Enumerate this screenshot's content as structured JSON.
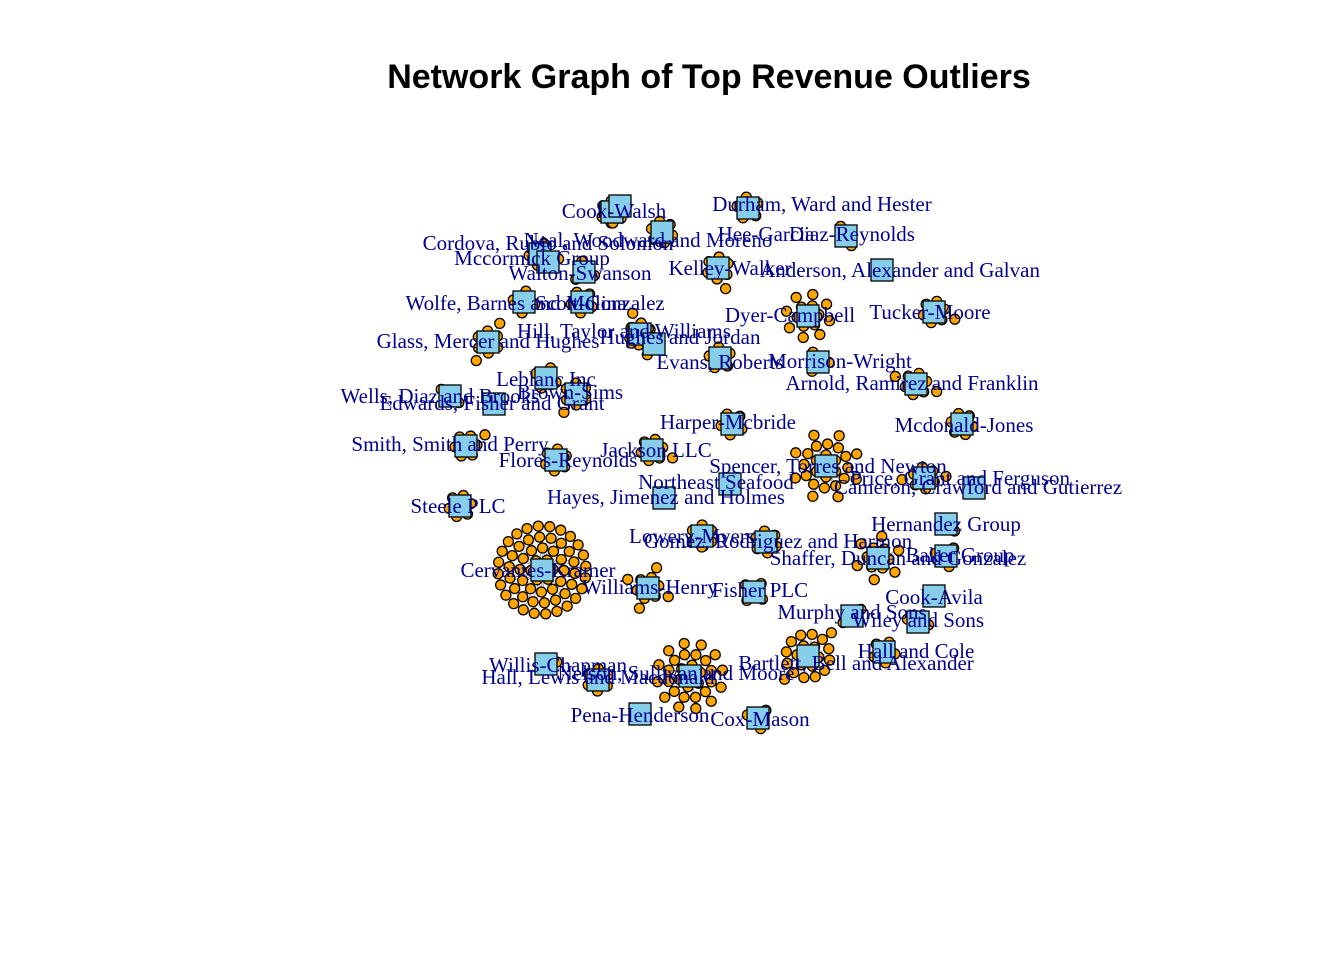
{
  "title": "Network Graph of Top Revenue Outliers",
  "colors": {
    "company_fill": "#87ceeb",
    "customer_fill": "#ffa500",
    "stroke": "#000000",
    "label": "#00008b"
  },
  "node_types": {
    "company": "square",
    "customer": "circle"
  },
  "companies": [
    {
      "name": "Durham, Ward and Hester",
      "customers": 6
    },
    {
      "name": "Cook-Walsh",
      "customers": 2
    },
    {
      "name": "Neal, Woodward and Moreno",
      "customers": 6
    },
    {
      "name": "Hee-Garcia",
      "customers": 5
    },
    {
      "name": "Diaz-Reynolds",
      "customers": 2
    },
    {
      "name": "Cordova, Rubio and Solomon",
      "customers": 3
    },
    {
      "name": "Mccormick Group",
      "customers": 2
    },
    {
      "name": "Kelley-Walker",
      "customers": 7
    },
    {
      "name": "Anderson, Alexander and Galvan",
      "customers": 0
    },
    {
      "name": "Walton-Swanson",
      "customers": 3
    },
    {
      "name": "Wolfe, Barnes and Molina",
      "customers": 4
    },
    {
      "name": "Scott-Gonzalez",
      "customers": 5
    },
    {
      "name": "Dyer-Campbell",
      "customers": 14
    },
    {
      "name": "Tucker-Moore",
      "customers": 7
    },
    {
      "name": "Hill, Taylor and Williams",
      "customers": 8
    },
    {
      "name": "Glass, Mercer and Hughes",
      "customers": 8
    },
    {
      "name": "Hughes and Jordan",
      "customers": 4
    },
    {
      "name": "Evans, Roberts",
      "customers": 5
    },
    {
      "name": "Morrison-Wright",
      "customers": 3
    },
    {
      "name": "Leblanc Inc",
      "customers": 4
    },
    {
      "name": "Arnold, Ramirez and Franklin",
      "customers": 8
    },
    {
      "name": "Wells, Diaz and Brooks",
      "customers": 2
    },
    {
      "name": "Brown-Sims",
      "customers": 7
    },
    {
      "name": "Edwards, Fisher and Grant",
      "customers": 0
    },
    {
      "name": "Mcdonald-Jones",
      "customers": 6
    },
    {
      "name": "Harper-Mcbride",
      "customers": 5
    },
    {
      "name": "Smith, Smith and Perry",
      "customers": 7
    },
    {
      "name": "Jackson LLC",
      "customers": 7
    },
    {
      "name": "Flores-Reynolds",
      "customers": 6
    },
    {
      "name": "Spencer, Torres and Newton",
      "customers": 26
    },
    {
      "name": "Price, Grant and Ferguson",
      "customers": 8
    },
    {
      "name": "Northeast Seafood",
      "customers": 0
    },
    {
      "name": "Cameron, Crawford and Gutierrez",
      "customers": 0
    },
    {
      "name": "Hayes, Jimenez and Holmes",
      "customers": 0
    },
    {
      "name": "Steele PLC",
      "customers": 6
    },
    {
      "name": "Hernandez Group",
      "customers": 1
    },
    {
      "name": "Lowery-Myers",
      "customers": 6
    },
    {
      "name": "Gomez, Rodriguez and Harmon",
      "customers": 6
    },
    {
      "name": "Baker Group",
      "customers": 3
    },
    {
      "name": "Shaffer, Duncan and Gonzalez",
      "customers": 12
    },
    {
      "name": "Cervantes-Kramer",
      "customers": 60
    },
    {
      "name": "Williams-Henry",
      "customers": 10
    },
    {
      "name": "Fisher PLC",
      "customers": 4
    },
    {
      "name": "Cook-Avila",
      "customers": 0
    },
    {
      "name": "Murphy and Sons",
      "customers": 2
    },
    {
      "name": "Wiley and Sons",
      "customers": 2
    },
    {
      "name": "Bartlett, Bell and Alexander",
      "customers": 20
    },
    {
      "name": "Hall and Cole",
      "customers": 5
    },
    {
      "name": "Willis-Chapman",
      "customers": 1
    },
    {
      "name": "Nelson, Sullivan and Moore",
      "customers": 30
    },
    {
      "name": "Hall, Lewis and Macdonald",
      "customers": 6
    },
    {
      "name": "Pena-Henderson",
      "customers": 0
    },
    {
      "name": "Cox-Mason",
      "customers": 3
    }
  ]
}
